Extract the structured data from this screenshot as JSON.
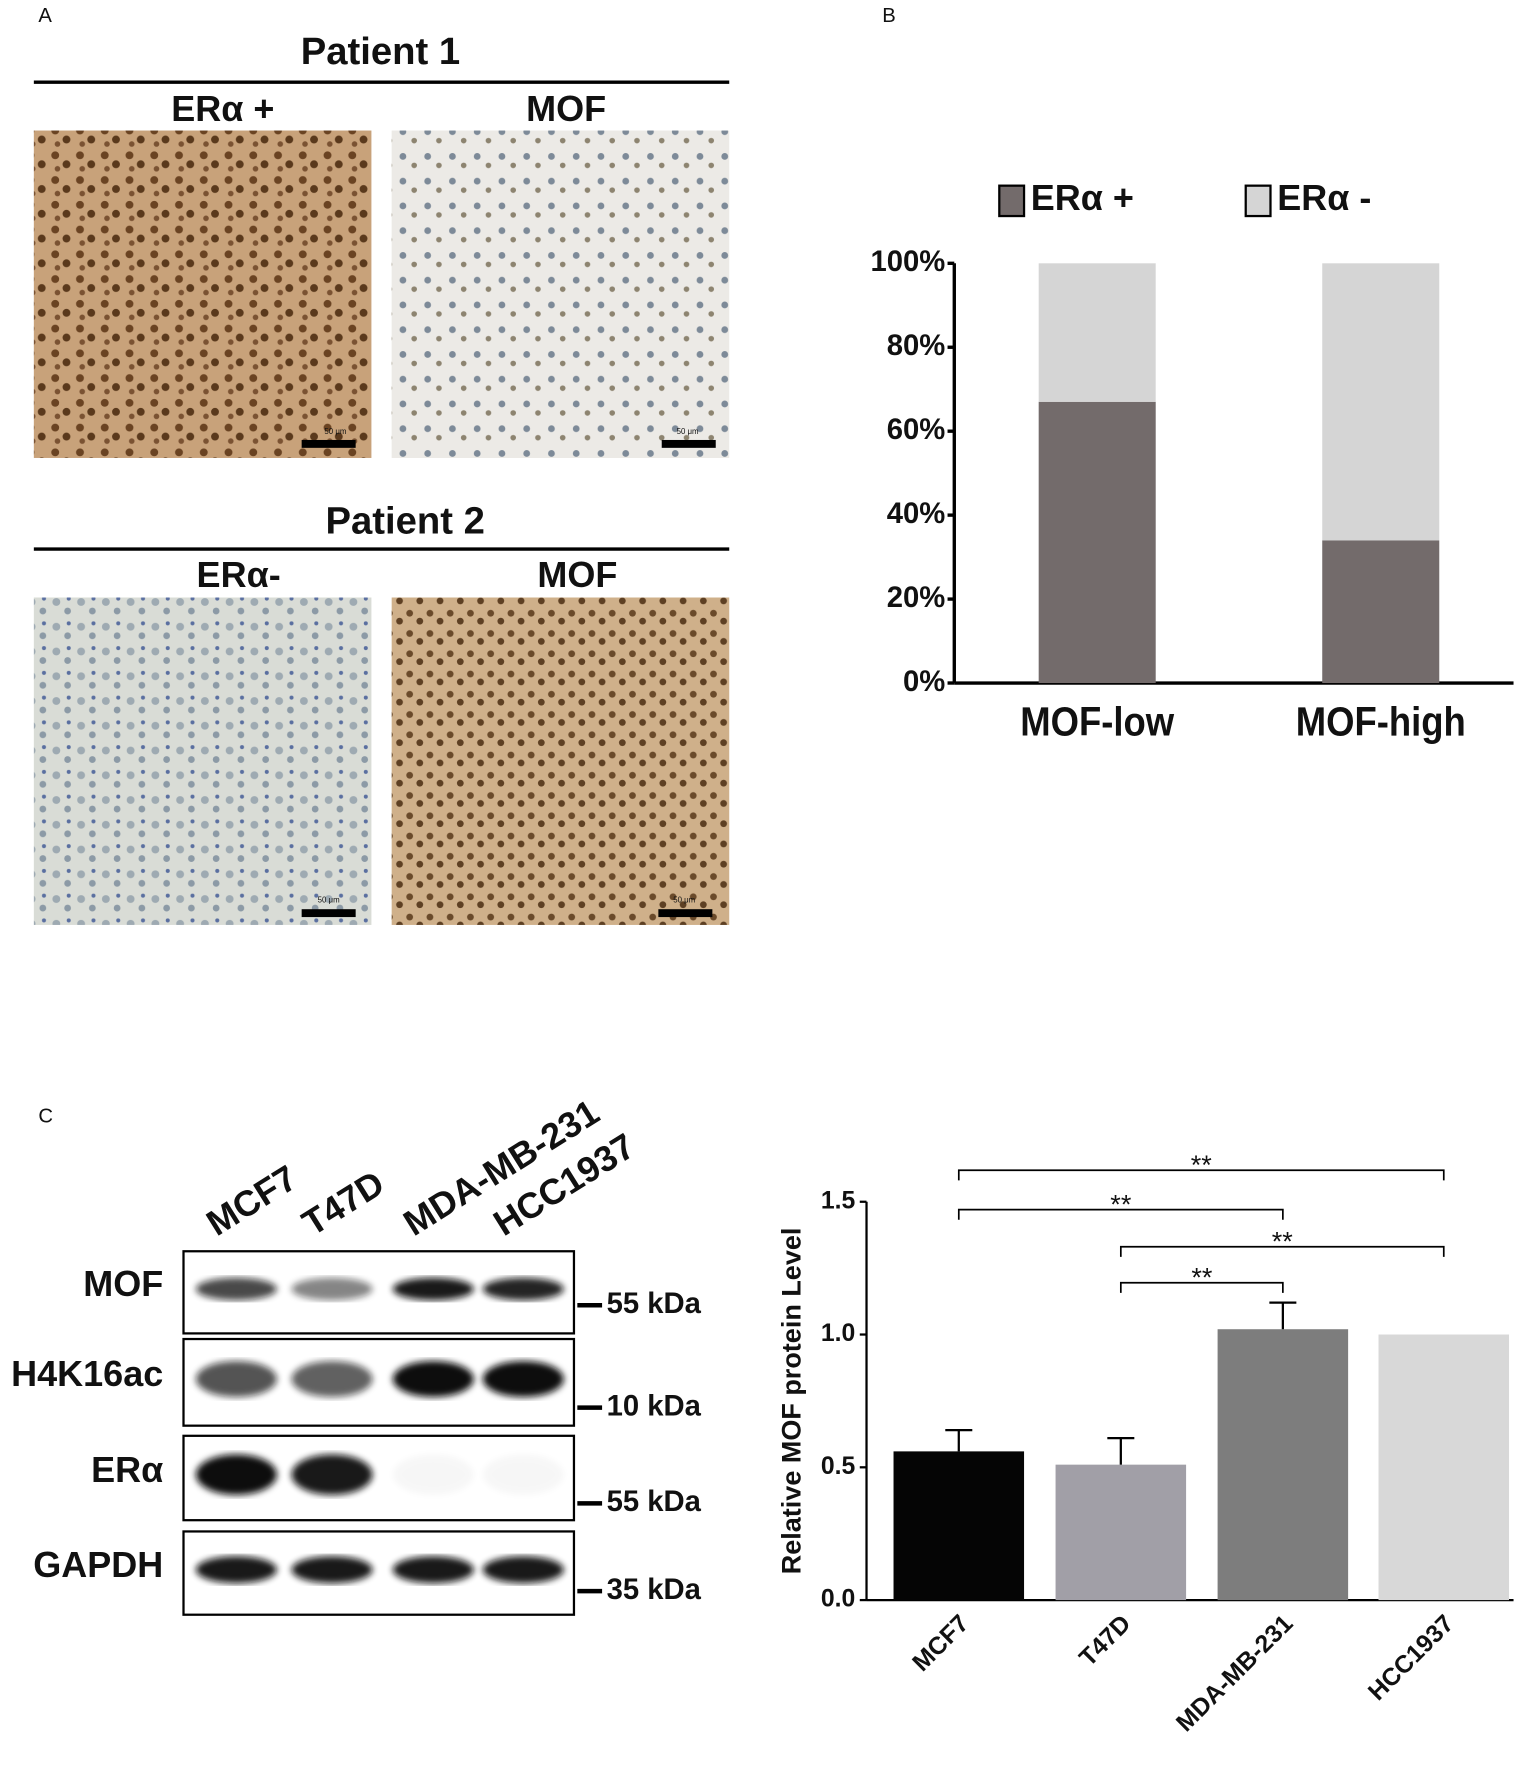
{
  "panels": {
    "a": {
      "label": "A",
      "patient1": "Patient 1",
      "patient1_left": "ERα +",
      "patient1_right": "MOF",
      "patient2": "Patient 2",
      "patient2_left": "ERα-",
      "patient2_right": "MOF",
      "scale_bar": "50 μm"
    },
    "b": {
      "label": "B"
    },
    "c": {
      "label": "C",
      "blot": {
        "lanes": [
          "MCF7",
          "T47D",
          "MDA-MB-231",
          "HCC1937"
        ],
        "rows": [
          {
            "name": "MOF",
            "marker": "55 kDa"
          },
          {
            "name": "H4K16ac",
            "marker": "10 kDa"
          },
          {
            "name": "ERα",
            "marker": "55 kDa"
          },
          {
            "name": "GAPDH",
            "marker": "35 kDa"
          }
        ]
      }
    }
  },
  "chart_data": [
    {
      "type": "stacked_bar",
      "categories": [
        "MOF-low",
        "MOF-high"
      ],
      "series": [
        {
          "name": "ERα +",
          "color": "#736b6b",
          "values": [
            67,
            34
          ]
        },
        {
          "name": "ERα -",
          "color": "#d5d5d5",
          "values": [
            33,
            66
          ]
        }
      ],
      "ylim": [
        0,
        100
      ],
      "yticks": [
        {
          "value": 0,
          "label": "0%"
        },
        {
          "value": 20,
          "label": "20%"
        },
        {
          "value": 40,
          "label": "40%"
        },
        {
          "value": 60,
          "label": "60%"
        },
        {
          "value": 80,
          "label": "80%"
        },
        {
          "value": 100,
          "label": "100%"
        }
      ],
      "legend": "top"
    },
    {
      "type": "bar",
      "categories": [
        "MCF7",
        "T47D",
        "MDA-MB-231",
        "HCC1937"
      ],
      "values": [
        0.56,
        0.51,
        1.02,
        1.0
      ],
      "errors": [
        0.08,
        0.1,
        0.1,
        0
      ],
      "colors": [
        "#050505",
        "#a19fa7",
        "#7d7d7d",
        "#d8d8d8"
      ],
      "ylabel": "Relative MOF protein Level",
      "ylim": [
        0,
        1.5
      ],
      "yticks": [
        {
          "value": 0,
          "label": "0.0"
        },
        0.5,
        {
          "value": 1,
          "label": "1.0"
        },
        1.5
      ],
      "significance": [
        {
          "pair": [
            "MCF7",
            "HCC1937"
          ],
          "label": "**"
        },
        {
          "pair": [
            "MCF7",
            "MDA-MB-231"
          ],
          "label": "**"
        },
        {
          "pair": [
            "T47D",
            "HCC1937"
          ],
          "label": "**"
        },
        {
          "pair": [
            "T47D",
            "MDA-MB-231"
          ],
          "label": "**"
        }
      ]
    }
  ]
}
